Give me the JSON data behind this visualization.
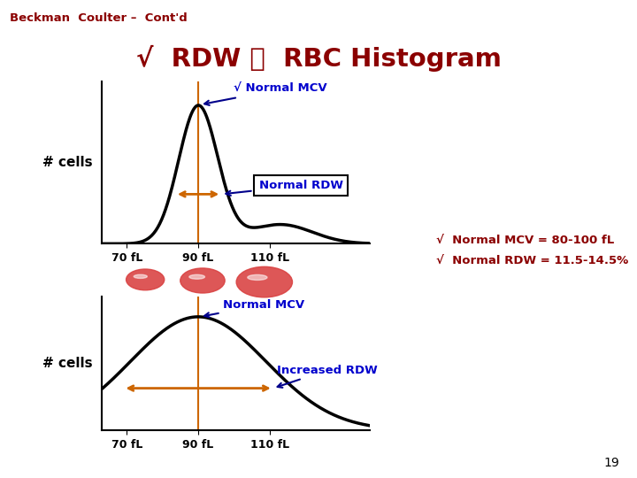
{
  "title": "√  RDW 와  RBC Histogram",
  "title_color": "#8B0000",
  "header": "Beckman  Coulter –  Cont'd",
  "header_color": "#8B0000",
  "normal_rdw_label": "Normal RDW",
  "normal_mcv_label1": "√ Normal MCV",
  "normal_mcv_label2": "Normal MCV",
  "increased_rdw_label": "Increased RDW",
  "cells_label": "# cells",
  "note_line1": "√  Normal MCV = 80-100 fL",
  "note_line2": "√  Normal RDW = 11.5-14.5%",
  "note_color": "#8B0000",
  "label_color": "#0000CD",
  "arrow_color": "#00008B",
  "orange_color": "#CD6600",
  "axis_x_labels": [
    "70 fL",
    "90 fL",
    "110 fL"
  ],
  "page_number": "19"
}
